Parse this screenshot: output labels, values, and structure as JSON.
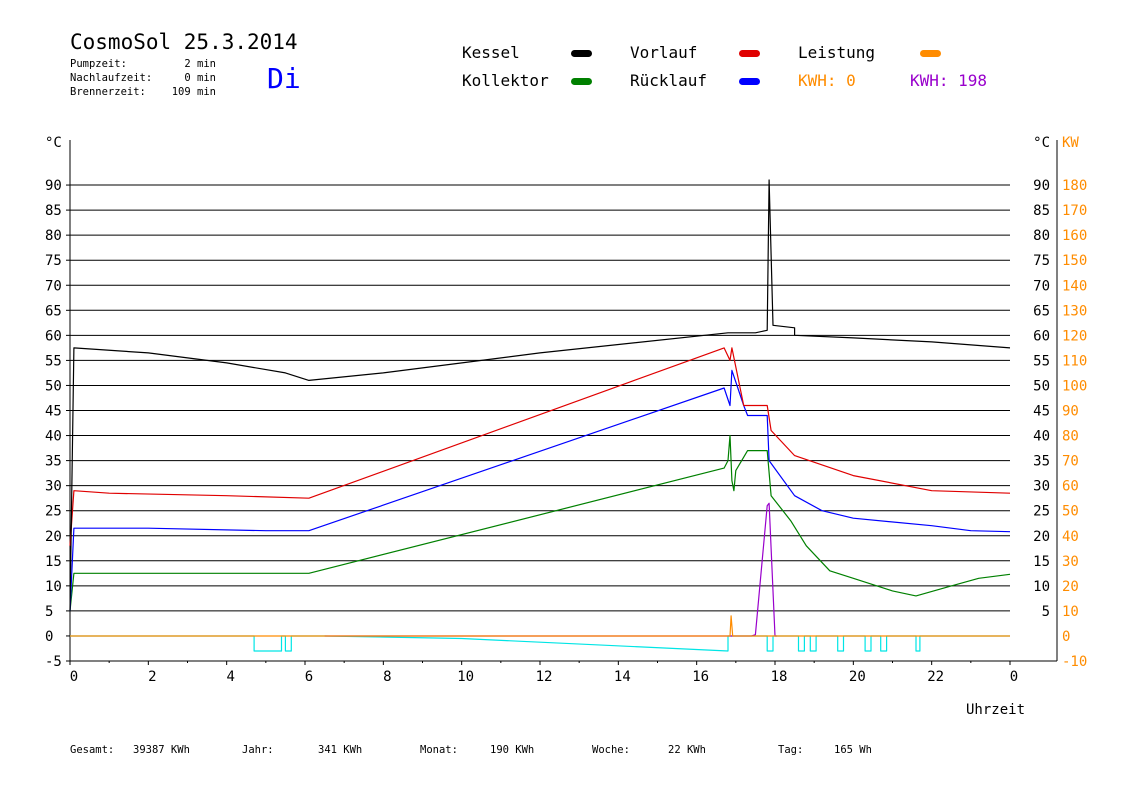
{
  "header": {
    "title": "CosmoSol 25.3.2014",
    "day": "Di",
    "info": [
      {
        "label": "Pumpzeit:",
        "value": "2 min"
      },
      {
        "label": "Nachlaufzeit:",
        "value": "0 min"
      },
      {
        "label": "Brennerzeit:",
        "value": "109 min"
      }
    ]
  },
  "legend": {
    "kessel": "Kessel",
    "kollektor": "Kollektor",
    "vorlauf": "Vorlauf",
    "ruecklauf": "Rücklauf",
    "leistung": "Leistung",
    "kwh1": "KWH: 0",
    "kwh2": "KWH: 198"
  },
  "footer": {
    "gesamt_label": "Gesamt:",
    "gesamt_value": "39387 KWh",
    "jahr_label": "Jahr:",
    "jahr_value": "341 KWh",
    "monat_label": "Monat:",
    "monat_value": "190 KWh",
    "woche_label": "Woche:",
    "woche_value": "22 KWh",
    "tag_label": "Tag:",
    "tag_value": "165 Wh"
  },
  "colors": {
    "kessel": "#000000",
    "kollektor": "#008000",
    "vorlauf": "#e00000",
    "ruecklauf": "#0000ff",
    "leistung": "#ff8c00",
    "kwh2": "#9900cc",
    "pump": "#00e5e5",
    "day": "#0000ff"
  },
  "chart_data": {
    "type": "line",
    "x_label": "Uhrzeit",
    "y_label_left": "°C",
    "y_label_right_temp": "°C",
    "y_label_right_power": "KW",
    "xlim": [
      0,
      24
    ],
    "ylim": [
      -5,
      95
    ],
    "y2lim": [
      -10,
      190
    ],
    "x_ticks": [
      "0",
      "2",
      "4",
      "6",
      "8",
      "10",
      "12",
      "14",
      "16",
      "18",
      "20",
      "22",
      "0"
    ],
    "y_ticks": [
      -5,
      0,
      5,
      10,
      15,
      20,
      25,
      30,
      35,
      40,
      45,
      50,
      55,
      60,
      65,
      70,
      75,
      80,
      85,
      90
    ],
    "y2_ticks": [
      -10,
      0,
      10,
      20,
      30,
      40,
      50,
      60,
      70,
      80,
      90,
      100,
      110,
      120,
      130,
      140,
      150,
      160,
      170,
      180
    ],
    "series": [
      {
        "key": "kessel",
        "name": "Kessel",
        "points": [
          [
            0,
            5
          ],
          [
            0.1,
            57.5
          ],
          [
            2,
            56.5
          ],
          [
            4,
            54.5
          ],
          [
            5.5,
            52.5
          ],
          [
            6.1,
            51
          ],
          [
            8,
            52.5
          ],
          [
            12,
            56.5
          ],
          [
            16.8,
            60.5
          ],
          [
            17.5,
            60.5
          ],
          [
            17.8,
            61
          ],
          [
            17.85,
            91
          ],
          [
            17.95,
            62
          ],
          [
            18.5,
            61.5
          ],
          [
            18.5,
            60
          ],
          [
            20,
            59.5
          ],
          [
            22,
            58.7
          ],
          [
            24,
            57.5
          ]
        ]
      },
      {
        "key": "vorlauf",
        "name": "Vorlauf",
        "points": [
          [
            0,
            18
          ],
          [
            0.1,
            29
          ],
          [
            1,
            28.5
          ],
          [
            4,
            28
          ],
          [
            6.1,
            27.5
          ],
          [
            16.7,
            57.5
          ],
          [
            16.85,
            55
          ],
          [
            16.9,
            57.5
          ],
          [
            17.2,
            46
          ],
          [
            17.5,
            46
          ],
          [
            17.8,
            46
          ],
          [
            17.9,
            41
          ],
          [
            18.5,
            36
          ],
          [
            20,
            32
          ],
          [
            22,
            29
          ],
          [
            24,
            28.5
          ]
        ]
      },
      {
        "key": "ruecklauf",
        "name": "Rücklauf",
        "points": [
          [
            0,
            5
          ],
          [
            0.1,
            21.5
          ],
          [
            2,
            21.5
          ],
          [
            5,
            21
          ],
          [
            6.1,
            21
          ],
          [
            16.7,
            49.5
          ],
          [
            16.85,
            46
          ],
          [
            16.9,
            53
          ],
          [
            17.2,
            46
          ],
          [
            17.3,
            44
          ],
          [
            17.8,
            44
          ],
          [
            17.85,
            35
          ],
          [
            18.5,
            28
          ],
          [
            19.2,
            25
          ],
          [
            20,
            23.5
          ],
          [
            22,
            22
          ],
          [
            23,
            21
          ],
          [
            24,
            20.8
          ]
        ]
      },
      {
        "key": "kollektor",
        "name": "Kollektor",
        "points": [
          [
            0,
            5
          ],
          [
            0.1,
            12.5
          ],
          [
            2,
            12.5
          ],
          [
            4,
            12.5
          ],
          [
            6.1,
            12.5
          ],
          [
            16.7,
            33.5
          ],
          [
            16.8,
            35
          ],
          [
            16.85,
            40
          ],
          [
            16.9,
            31
          ],
          [
            16.95,
            29
          ],
          [
            17.0,
            33
          ],
          [
            17.3,
            37
          ],
          [
            17.8,
            37
          ],
          [
            17.9,
            28
          ],
          [
            18.4,
            23
          ],
          [
            18.8,
            18
          ],
          [
            19.4,
            13
          ],
          [
            20,
            11.5
          ],
          [
            21,
            9
          ],
          [
            21.6,
            8
          ],
          [
            22.5,
            10
          ],
          [
            23.2,
            11.5
          ],
          [
            24,
            12.3
          ]
        ]
      },
      {
        "key": "leistung",
        "name": "Leistung",
        "points": [
          [
            0,
            0
          ],
          [
            16.85,
            0
          ],
          [
            16.88,
            8
          ],
          [
            16.92,
            0
          ],
          [
            24,
            0
          ]
        ]
      },
      {
        "key": "kwh2",
        "name": "KWH",
        "points": [
          [
            6.5,
            0
          ],
          [
            16.6,
            0
          ],
          [
            17.4,
            0
          ],
          [
            17.5,
            0.5
          ],
          [
            17.8,
            52
          ],
          [
            17.85,
            53
          ],
          [
            18,
            0
          ],
          [
            18.05,
            0
          ]
        ]
      },
      {
        "key": "pump",
        "name": "Pumpe",
        "points": [
          [
            0,
            0
          ],
          [
            4.7,
            0
          ],
          [
            4.7,
            -3
          ],
          [
            5.4,
            -3
          ],
          [
            5.4,
            0
          ],
          [
            5.5,
            0
          ],
          [
            5.5,
            -3
          ],
          [
            5.65,
            -3
          ],
          [
            5.65,
            0
          ],
          [
            6.5,
            0
          ],
          [
            10,
            -0.5
          ],
          [
            16.8,
            -3
          ],
          [
            16.8,
            0
          ],
          [
            17.8,
            0
          ],
          [
            17.8,
            -3
          ],
          [
            17.95,
            -3
          ],
          [
            17.95,
            0
          ],
          [
            18.6,
            0
          ],
          [
            18.6,
            -3
          ],
          [
            18.75,
            -3
          ],
          [
            18.75,
            0
          ],
          [
            18.9,
            0
          ],
          [
            18.9,
            -3
          ],
          [
            19.05,
            -3
          ],
          [
            19.05,
            0
          ],
          [
            19.6,
            0
          ],
          [
            19.6,
            -3
          ],
          [
            19.75,
            -3
          ],
          [
            19.75,
            0
          ],
          [
            20.3,
            0
          ],
          [
            20.3,
            -3
          ],
          [
            20.45,
            -3
          ],
          [
            20.45,
            0
          ],
          [
            20.7,
            0
          ],
          [
            20.7,
            -3
          ],
          [
            20.85,
            -3
          ],
          [
            20.85,
            0
          ],
          [
            21.6,
            0
          ],
          [
            21.6,
            -3
          ],
          [
            21.7,
            -3
          ],
          [
            21.7,
            0
          ],
          [
            24,
            0
          ]
        ]
      }
    ]
  }
}
